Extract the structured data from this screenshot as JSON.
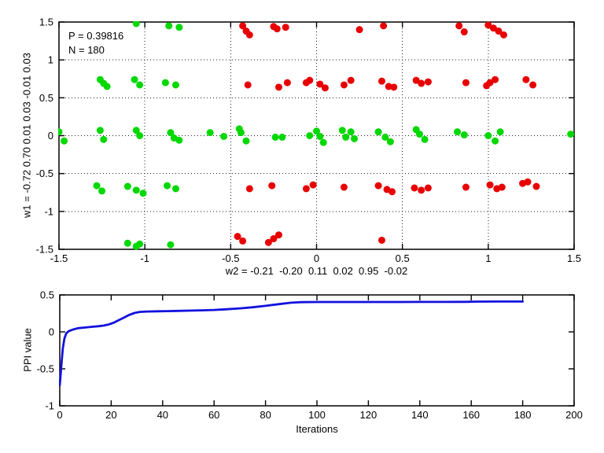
{
  "colors": {
    "class_green": "#00D800",
    "class_red": "#E80000",
    "curve_blue": "#1212DD",
    "axis": "#000000",
    "background": "#ffffff"
  },
  "chart_data": [
    {
      "type": "scatter",
      "title": "",
      "annotations": [
        "P = 0.39816",
        "N = 180"
      ],
      "xlabel": "w2 = -0.21  -0.20  0.11  0.02  0.95  -0.02",
      "ylabel": "w1 = -0.72  0.70  0.01  0.03  -0.01  0.03",
      "xlim": [
        -1.5,
        1.5
      ],
      "ylim": [
        -1.5,
        1.5
      ],
      "xticks": [
        -1.5,
        -1,
        -0.5,
        0,
        0.5,
        1,
        1.5
      ],
      "yticks": [
        -1.5,
        -1,
        -0.5,
        0,
        0.5,
        1,
        1.5
      ],
      "grid": true,
      "marker_radius": 4.5,
      "series": [
        {
          "name": "green-class-points",
          "color": "#00D800",
          "points": [
            [
              -1.05,
              1.48
            ],
            [
              -0.86,
              1.45
            ],
            [
              -0.8,
              1.43
            ],
            [
              -1.26,
              0.74
            ],
            [
              -1.24,
              0.69
            ],
            [
              -1.22,
              0.65
            ],
            [
              -1.06,
              0.74
            ],
            [
              -1.03,
              0.67
            ],
            [
              -0.88,
              0.7
            ],
            [
              -0.82,
              0.67
            ],
            [
              -1.5,
              0.05
            ],
            [
              -1.47,
              -0.07
            ],
            [
              -1.26,
              0.07
            ],
            [
              -1.24,
              -0.05
            ],
            [
              -1.05,
              0.07
            ],
            [
              -1.03,
              0.0
            ],
            [
              -0.85,
              0.04
            ],
            [
              -0.83,
              -0.03
            ],
            [
              -0.8,
              -0.06
            ],
            [
              -0.62,
              0.04
            ],
            [
              -0.54,
              -0.01
            ],
            [
              -0.45,
              0.09
            ],
            [
              -0.44,
              0.04
            ],
            [
              -0.41,
              -0.07
            ],
            [
              -0.24,
              -0.02
            ],
            [
              -0.2,
              -0.02
            ],
            [
              -0.04,
              0.0
            ],
            [
              0.0,
              0.06
            ],
            [
              0.02,
              -0.01
            ],
            [
              0.04,
              -0.09
            ],
            [
              0.15,
              0.07
            ],
            [
              0.17,
              -0.02
            ],
            [
              0.2,
              0.05
            ],
            [
              0.22,
              -0.04
            ],
            [
              0.36,
              0.05
            ],
            [
              0.4,
              -0.02
            ],
            [
              0.43,
              -0.08
            ],
            [
              0.58,
              0.08
            ],
            [
              0.6,
              0.02
            ],
            [
              0.63,
              -0.05
            ],
            [
              0.82,
              0.05
            ],
            [
              0.86,
              0.01
            ],
            [
              1.0,
              0.0
            ],
            [
              1.04,
              -0.07
            ],
            [
              1.07,
              0.05
            ],
            [
              1.48,
              0.02
            ],
            [
              -1.28,
              -0.66
            ],
            [
              -1.25,
              -0.73
            ],
            [
              -1.1,
              -0.67
            ],
            [
              -1.05,
              -0.72
            ],
            [
              -1.01,
              -0.76
            ],
            [
              -0.87,
              -0.66
            ],
            [
              -0.82,
              -0.7
            ],
            [
              -1.1,
              -1.42
            ],
            [
              -1.05,
              -1.46
            ],
            [
              -1.03,
              -1.43
            ],
            [
              -0.85,
              -1.44
            ]
          ]
        },
        {
          "name": "red-class-points",
          "color": "#E80000",
          "points": [
            [
              -0.43,
              1.45
            ],
            [
              -0.41,
              1.38
            ],
            [
              -0.39,
              1.33
            ],
            [
              -0.25,
              1.44
            ],
            [
              -0.23,
              1.41
            ],
            [
              -0.18,
              1.43
            ],
            [
              0.25,
              1.4
            ],
            [
              0.39,
              1.45
            ],
            [
              0.83,
              1.45
            ],
            [
              0.86,
              1.37
            ],
            [
              1.0,
              1.46
            ],
            [
              1.03,
              1.42
            ],
            [
              1.06,
              1.38
            ],
            [
              1.09,
              1.33
            ],
            [
              -0.4,
              0.67
            ],
            [
              -0.22,
              0.64
            ],
            [
              -0.17,
              0.7
            ],
            [
              -0.06,
              0.7
            ],
            [
              -0.04,
              0.73
            ],
            [
              0.02,
              0.68
            ],
            [
              0.05,
              0.63
            ],
            [
              0.16,
              0.67
            ],
            [
              0.2,
              0.73
            ],
            [
              0.38,
              0.72
            ],
            [
              0.42,
              0.65
            ],
            [
              0.45,
              0.64
            ],
            [
              0.58,
              0.73
            ],
            [
              0.61,
              0.69
            ],
            [
              0.65,
              0.71
            ],
            [
              0.87,
              0.7
            ],
            [
              0.99,
              0.66
            ],
            [
              1.01,
              0.7
            ],
            [
              1.04,
              0.74
            ],
            [
              1.22,
              0.74
            ],
            [
              1.26,
              0.67
            ],
            [
              -0.39,
              -0.7
            ],
            [
              -0.26,
              -0.66
            ],
            [
              -0.06,
              -0.7
            ],
            [
              -0.02,
              -0.65
            ],
            [
              0.16,
              -0.68
            ],
            [
              0.36,
              -0.66
            ],
            [
              0.41,
              -0.71
            ],
            [
              0.44,
              -0.74
            ],
            [
              0.57,
              -0.69
            ],
            [
              0.61,
              -0.72
            ],
            [
              0.65,
              -0.69
            ],
            [
              0.87,
              -0.68
            ],
            [
              1.01,
              -0.65
            ],
            [
              1.05,
              -0.7
            ],
            [
              1.08,
              -0.68
            ],
            [
              1.2,
              -0.63
            ],
            [
              1.23,
              -0.61
            ],
            [
              1.28,
              -0.67
            ],
            [
              -0.46,
              -1.33
            ],
            [
              -0.43,
              -1.39
            ],
            [
              -0.28,
              -1.41
            ],
            [
              -0.25,
              -1.36
            ],
            [
              -0.22,
              -1.31
            ],
            [
              0.38,
              -1.38
            ]
          ]
        }
      ]
    },
    {
      "type": "line",
      "title": "",
      "xlabel": "Iterations",
      "ylabel": "PPI value",
      "xlim": [
        0,
        200
      ],
      "ylim": [
        -1,
        0.5
      ],
      "xticks": [
        0,
        20,
        40,
        60,
        80,
        100,
        120,
        140,
        160,
        180,
        200
      ],
      "yticks": [
        -1,
        -0.5,
        0,
        0.5
      ],
      "grid": false,
      "line_width": 2.8,
      "series": [
        {
          "name": "ppi-curve",
          "color": "#1212DD",
          "points": [
            [
              0,
              -0.72
            ],
            [
              0.4,
              -0.55
            ],
            [
              0.8,
              -0.38
            ],
            [
              1.2,
              -0.22
            ],
            [
              1.8,
              -0.09
            ],
            [
              2.5,
              -0.02
            ],
            [
              3.5,
              0.01
            ],
            [
              5,
              0.03
            ],
            [
              7,
              0.05
            ],
            [
              10,
              0.06
            ],
            [
              13,
              0.07
            ],
            [
              15,
              0.077
            ],
            [
              17,
              0.085
            ],
            [
              19,
              0.1
            ],
            [
              21,
              0.125
            ],
            [
              23,
              0.16
            ],
            [
              25,
              0.195
            ],
            [
              27,
              0.23
            ],
            [
              29,
              0.255
            ],
            [
              31,
              0.27
            ],
            [
              34,
              0.276
            ],
            [
              38,
              0.279
            ],
            [
              42,
              0.281
            ],
            [
              46,
              0.284
            ],
            [
              50,
              0.287
            ],
            [
              55,
              0.291
            ],
            [
              60,
              0.297
            ],
            [
              65,
              0.306
            ],
            [
              70,
              0.318
            ],
            [
              75,
              0.333
            ],
            [
              80,
              0.352
            ],
            [
              85,
              0.375
            ],
            [
              90,
              0.395
            ],
            [
              94,
              0.402
            ],
            [
              100,
              0.404
            ],
            [
              110,
              0.404
            ],
            [
              120,
              0.404
            ],
            [
              130,
              0.404
            ],
            [
              140,
              0.405
            ],
            [
              150,
              0.405
            ],
            [
              158,
              0.406
            ],
            [
              162,
              0.41
            ],
            [
              170,
              0.411
            ],
            [
              180,
              0.411
            ]
          ]
        }
      ]
    }
  ]
}
